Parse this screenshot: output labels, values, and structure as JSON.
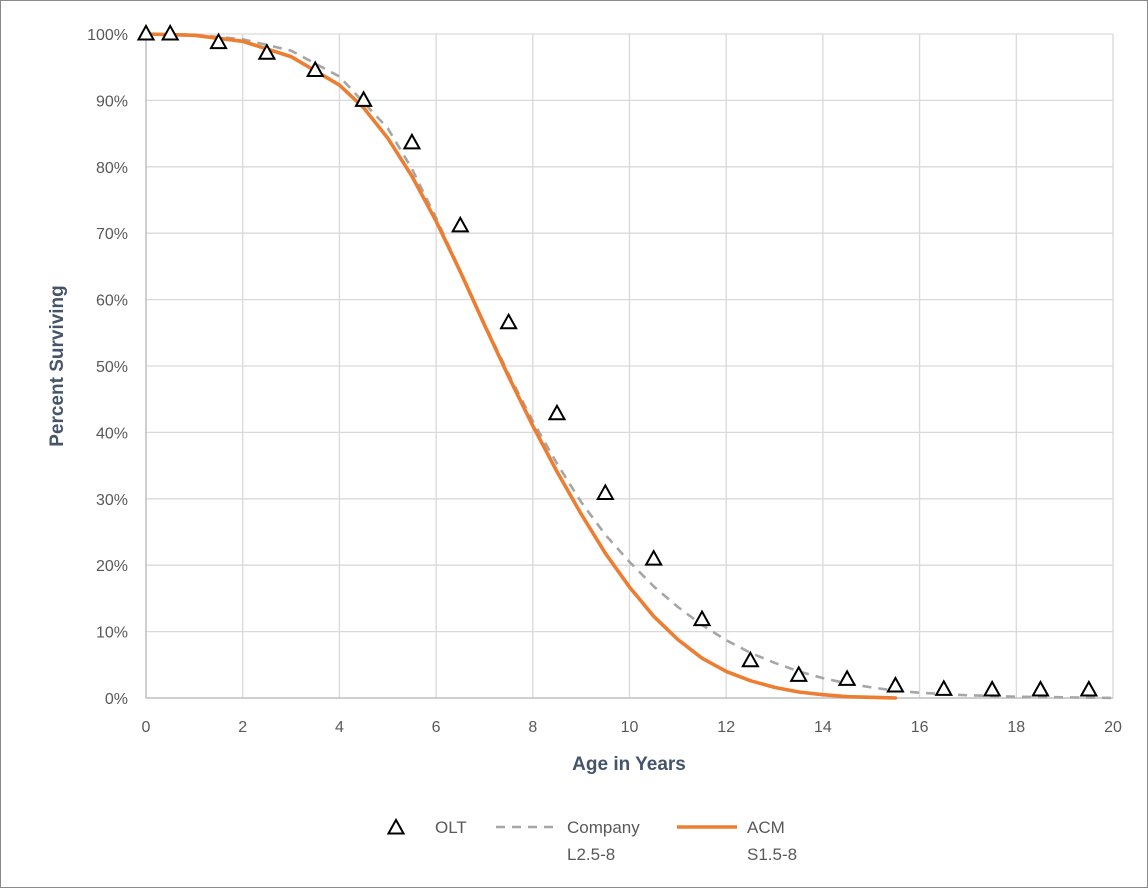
{
  "chart_data": {
    "type": "line",
    "title": "",
    "xlabel": "Age in Years",
    "ylabel": "Percent Surviving",
    "xlim": [
      0,
      20
    ],
    "ylim": [
      0,
      100
    ],
    "x_ticks": [
      0,
      2,
      4,
      6,
      8,
      10,
      12,
      14,
      16,
      18,
      20
    ],
    "y_ticks": [
      0,
      10,
      20,
      30,
      40,
      50,
      60,
      70,
      80,
      90,
      100
    ],
    "x_tick_labels": [
      "0",
      "2",
      "4",
      "6",
      "8",
      "10",
      "12",
      "14",
      "16",
      "18",
      "20"
    ],
    "y_tick_labels": [
      "0%",
      "10%",
      "20%",
      "30%",
      "40%",
      "50%",
      "60%",
      "70%",
      "80%",
      "90%",
      "100%"
    ],
    "grid": true,
    "legend_position": "bottom",
    "series": [
      {
        "name": "OLT",
        "legend_lines": [
          "OLT"
        ],
        "style": "markers-triangle",
        "color": "#000000",
        "x": [
          0,
          0.5,
          1.5,
          2.5,
          3.5,
          4.5,
          5.5,
          6.5,
          7.5,
          8.5,
          9.5,
          10.5,
          11.5,
          12.5,
          13.5,
          14.5,
          15.5,
          16.5,
          17.5,
          18.5,
          19.5
        ],
        "y": [
          100,
          100,
          98.7,
          97.1,
          94.5,
          90,
          83.6,
          71.1,
          56.5,
          42.8,
          30.8,
          20.9,
          11.8,
          5.6,
          3.4,
          2.8,
          1.8,
          1.3,
          1.2,
          1.2,
          1.2
        ]
      },
      {
        "name": "Company L2.5-8",
        "legend_lines": [
          "Company",
          "L2.5-8"
        ],
        "style": "dashed",
        "color": "#a6a6a6",
        "x": [
          0,
          1,
          2,
          3,
          4,
          5,
          5.5,
          6,
          6.5,
          7,
          7.5,
          8,
          8.5,
          9,
          9.5,
          10,
          10.5,
          11,
          11.5,
          12,
          12.5,
          13,
          13.5,
          14,
          14.5,
          15,
          15.5,
          16,
          17,
          18,
          19,
          20
        ],
        "y": [
          100,
          99.9,
          99.2,
          97.5,
          93.6,
          85.8,
          79.7,
          72.3,
          64.3,
          56.4,
          48.8,
          41.7,
          35.3,
          29.5,
          24.6,
          20.5,
          16.8,
          13.7,
          11,
          8.7,
          6.8,
          5.3,
          4,
          3,
          2.2,
          1.6,
          1.1,
          0.8,
          0.4,
          0.2,
          0.1,
          0
        ]
      },
      {
        "name": "ACM S1.5-8",
        "legend_lines": [
          "ACM",
          "S1.5-8"
        ],
        "style": "solid",
        "color": "#ed7d31",
        "x": [
          0,
          1,
          2,
          3,
          4,
          4.5,
          5,
          5.5,
          6,
          6.5,
          7,
          7.5,
          8,
          8.5,
          9,
          9.5,
          10,
          10.5,
          11,
          11.5,
          12,
          12.5,
          13,
          13.5,
          14,
          14.5,
          15,
          15.5
        ],
        "y": [
          100,
          99.8,
          98.9,
          96.6,
          92.3,
          88.9,
          84.3,
          78.6,
          71.8,
          64.2,
          56.2,
          48.4,
          41,
          34.1,
          27.7,
          21.8,
          16.7,
          12.3,
          8.8,
          6,
          4,
          2.6,
          1.6,
          0.9,
          0.5,
          0.2,
          0.1,
          0
        ]
      }
    ]
  }
}
